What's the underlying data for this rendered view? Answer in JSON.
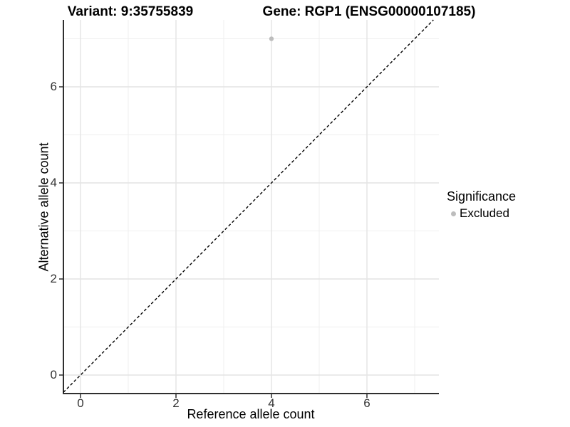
{
  "titles": {
    "variant": "Variant: 9:35755839",
    "gene": "Gene: RGP1 (ENSG00000107185)"
  },
  "axes": {
    "x": {
      "label": "Reference allele count",
      "tick_labels": [
        "0",
        "2",
        "4",
        "6"
      ]
    },
    "y": {
      "label": "Alternative allele count",
      "tick_labels": [
        "0",
        "2",
        "4",
        "6"
      ]
    }
  },
  "legend": {
    "title": "Significance",
    "items": [
      {
        "label": "Excluded",
        "color": "#bdbdbd"
      }
    ]
  },
  "chart_data": {
    "type": "scatter",
    "title": "Variant: 9:35755839 | Gene: RGP1 (ENSG00000107185)",
    "xlabel": "Reference allele count",
    "ylabel": "Alternative allele count",
    "series": [
      {
        "name": "Excluded",
        "color": "#bdbdbd",
        "points": [
          {
            "x": 4,
            "y": 7
          }
        ]
      }
    ],
    "reference_line": {
      "type": "identity",
      "style": "dashed",
      "color": "#000000"
    },
    "x_ticks": [
      0,
      2,
      4,
      6
    ],
    "y_ticks": [
      0,
      2,
      4,
      6
    ],
    "x_minor_grid": [
      1,
      3,
      5,
      7
    ],
    "y_minor_grid": [
      1,
      3,
      5,
      7
    ],
    "xlim": [
      -0.35,
      7.5
    ],
    "ylim": [
      -0.39,
      7.38
    ],
    "grid": "on",
    "legend_position": "right"
  },
  "colors": {
    "grid_major": "#e4e4e4",
    "grid_minor": "#efefef",
    "axis_line": "#2f2f2f",
    "point": "#bdbdbd",
    "tick_text": "#333333"
  }
}
